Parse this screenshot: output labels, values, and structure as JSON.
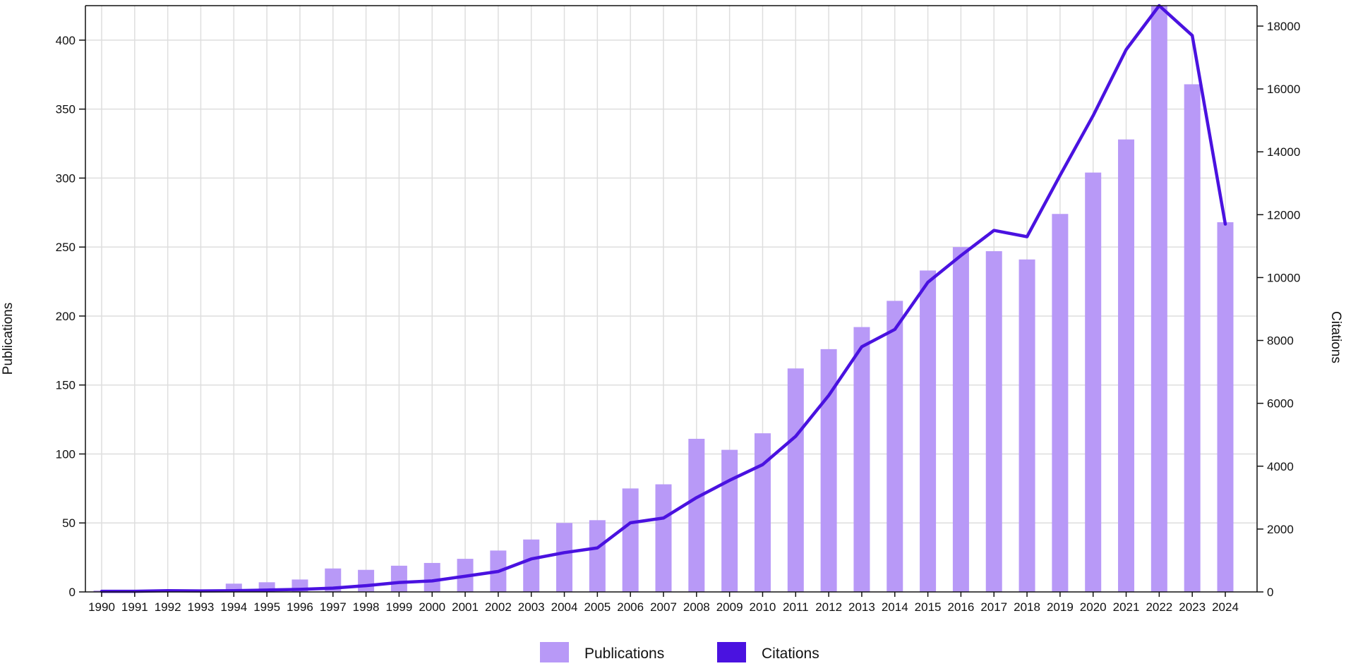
{
  "chart_data": {
    "type": "bar",
    "categories": [
      "1990",
      "1991",
      "1992",
      "1993",
      "1994",
      "1995",
      "1996",
      "1997",
      "1998",
      "1999",
      "2000",
      "2001",
      "2002",
      "2003",
      "2004",
      "2005",
      "2006",
      "2007",
      "2008",
      "2009",
      "2010",
      "2011",
      "2012",
      "2013",
      "2014",
      "2015",
      "2016",
      "2017",
      "2018",
      "2019",
      "2020",
      "2021",
      "2022",
      "2023",
      "2024"
    ],
    "series": [
      {
        "name": "Publications",
        "type": "bar",
        "axis": "left",
        "color": "#b899f7",
        "values": [
          1,
          1,
          1,
          1,
          6,
          7,
          9,
          17,
          16,
          19,
          21,
          24,
          30,
          38,
          50,
          52,
          75,
          78,
          111,
          103,
          115,
          162,
          176,
          192,
          211,
          233,
          250,
          247,
          241,
          274,
          304,
          328,
          425,
          368,
          268
        ]
      },
      {
        "name": "Citations",
        "type": "line",
        "axis": "right",
        "color": "#4a12e0",
        "values": [
          20,
          20,
          40,
          30,
          40,
          60,
          80,
          120,
          200,
          300,
          350,
          500,
          650,
          1050,
          1250,
          1400,
          2200,
          2350,
          3000,
          3550,
          4050,
          4950,
          6250,
          7800,
          8350,
          9850,
          10700,
          11500,
          11300,
          13250,
          15150,
          17250,
          18650,
          17700,
          11700
        ]
      }
    ],
    "y_left": {
      "label": "Publications",
      "lim": [
        0,
        425
      ],
      "ticks": [
        0,
        50,
        100,
        150,
        200,
        250,
        300,
        350,
        400
      ]
    },
    "y_right": {
      "label": "Citations",
      "lim": [
        0,
        18650
      ],
      "ticks": [
        0,
        2000,
        4000,
        6000,
        8000,
        10000,
        12000,
        14000,
        16000,
        18000
      ]
    },
    "grid": true,
    "legend": {
      "position": "bottom-center",
      "items": [
        "Publications",
        "Citations"
      ]
    }
  }
}
